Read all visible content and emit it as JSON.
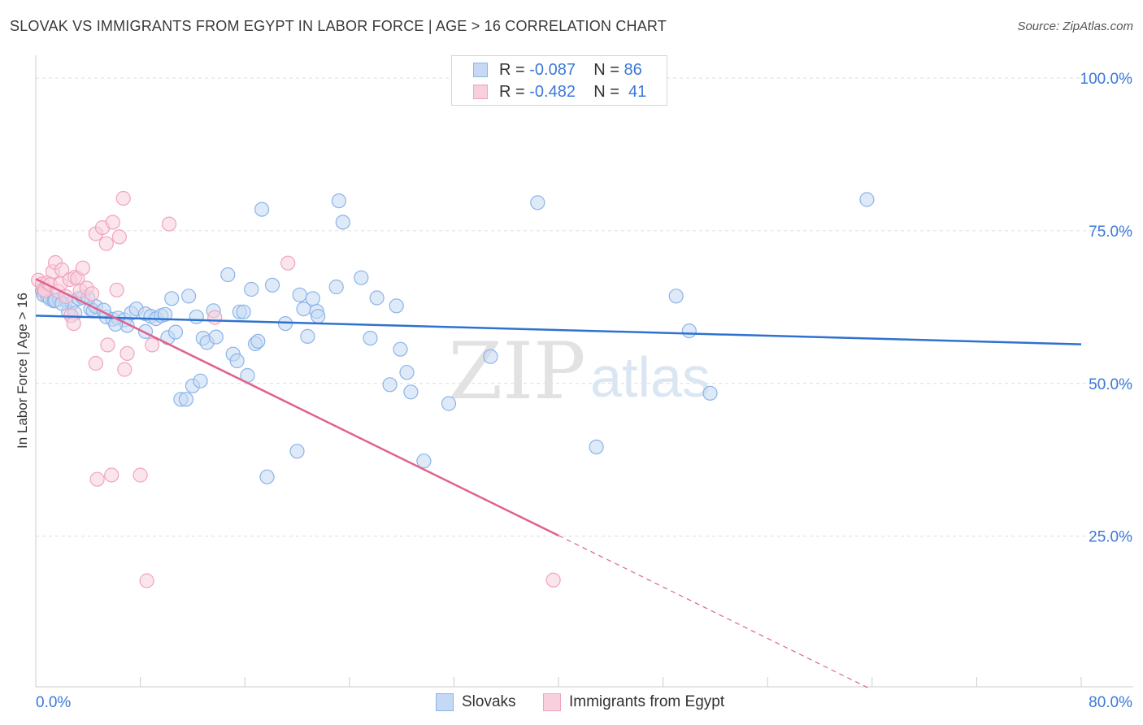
{
  "chart_data": {
    "type": "scatter",
    "title": "SLOVAK VS IMMIGRANTS FROM EGYPT IN LABOR FORCE | AGE > 16 CORRELATION CHART",
    "source": "Source: ZipAtlas.com",
    "ylabel": "In Labor Force | Age > 16",
    "xlim": [
      0,
      80
    ],
    "ylim": [
      0,
      100
    ],
    "x_tick_labels": {
      "min": "0.0%",
      "max": "80.0%"
    },
    "y_tick_labels": [
      {
        "value": 100,
        "label": "100.0%"
      },
      {
        "value": 75,
        "label": "75.0%"
      },
      {
        "value": 50,
        "label": "50.0%"
      },
      {
        "value": 25,
        "label": "25.0%"
      }
    ],
    "watermark": {
      "zip": "ZIP",
      "atlas": "atlas"
    },
    "stats": [
      {
        "r_label": "R =",
        "r_value": "-0.087",
        "n_label": "N =",
        "n_value": "86"
      },
      {
        "r_label": "R =",
        "r_value": "-0.482",
        "n_label": "N =",
        "n_value": "41"
      }
    ],
    "series": [
      {
        "name": "Slovaks",
        "color": "#8ab4e8",
        "fill": "#c5d9f4",
        "line_color": "#2e72cf",
        "trend": {
          "x0": 0,
          "y0": 61.1,
          "x1": 80,
          "y1": 56.4
        },
        "points": [
          [
            0.5,
            65.2
          ],
          [
            0.6,
            64.5
          ],
          [
            0.9,
            64.2
          ],
          [
            1.1,
            63.8
          ],
          [
            1.4,
            63.5
          ],
          [
            1.8,
            63.8
          ],
          [
            2.3,
            63.6
          ],
          [
            2.5,
            61.7
          ],
          [
            2.8,
            63.2
          ],
          [
            3.3,
            63.9
          ],
          [
            3.6,
            64.1
          ],
          [
            4.2,
            62.2
          ],
          [
            4.4,
            61.9
          ],
          [
            4.6,
            62.6
          ],
          [
            5.4,
            60.9
          ],
          [
            5.9,
            60.5
          ],
          [
            6.3,
            60.7
          ],
          [
            6.8,
            60.4
          ],
          [
            7.3,
            61.5
          ],
          [
            7.7,
            62.2
          ],
          [
            8.4,
            61.4
          ],
          [
            8.8,
            61.0
          ],
          [
            9.2,
            60.6
          ],
          [
            9.6,
            61.1
          ],
          [
            10.1,
            57.5
          ],
          [
            10.4,
            63.9
          ],
          [
            10.7,
            58.4
          ],
          [
            11.1,
            47.4
          ],
          [
            11.5,
            47.4
          ],
          [
            11.7,
            64.3
          ],
          [
            12.0,
            49.6
          ],
          [
            12.3,
            60.9
          ],
          [
            12.6,
            50.4
          ],
          [
            12.8,
            57.4
          ],
          [
            13.1,
            56.7
          ],
          [
            13.6,
            61.9
          ],
          [
            13.8,
            57.6
          ],
          [
            14.7,
            67.8
          ],
          [
            15.1,
            54.8
          ],
          [
            15.4,
            53.7
          ],
          [
            15.6,
            61.7
          ],
          [
            15.9,
            61.7
          ],
          [
            16.2,
            51.3
          ],
          [
            16.5,
            65.4
          ],
          [
            16.8,
            56.5
          ],
          [
            17.0,
            56.9
          ],
          [
            17.3,
            78.5
          ],
          [
            17.7,
            34.7
          ],
          [
            18.1,
            66.1
          ],
          [
            19.1,
            59.8
          ],
          [
            20.0,
            38.9
          ],
          [
            20.2,
            64.5
          ],
          [
            20.5,
            62.2
          ],
          [
            20.8,
            57.7
          ],
          [
            21.2,
            63.9
          ],
          [
            21.5,
            61.8
          ],
          [
            21.6,
            61.0
          ],
          [
            23.0,
            65.8
          ],
          [
            23.2,
            79.9
          ],
          [
            23.5,
            76.4
          ],
          [
            24.9,
            67.3
          ],
          [
            25.6,
            57.4
          ],
          [
            26.1,
            64.0
          ],
          [
            27.1,
            49.8
          ],
          [
            27.6,
            62.7
          ],
          [
            27.9,
            55.6
          ],
          [
            28.4,
            51.8
          ],
          [
            28.7,
            48.6
          ],
          [
            29.7,
            37.3
          ],
          [
            31.6,
            46.7
          ],
          [
            34.8,
            54.4
          ],
          [
            38.4,
            79.6
          ],
          [
            42.9,
            39.6
          ],
          [
            49.0,
            64.3
          ],
          [
            50.0,
            58.6
          ],
          [
            51.6,
            48.4
          ],
          [
            63.6,
            80.1
          ],
          [
            4.0,
            64.0
          ],
          [
            7.0,
            59.5
          ],
          [
            5.2,
            62.0
          ],
          [
            9.9,
            61.3
          ],
          [
            8.4,
            58.5
          ],
          [
            6.1,
            59.7
          ],
          [
            1.5,
            63.6
          ],
          [
            2.0,
            63.1
          ],
          [
            3.0,
            61.5
          ]
        ]
      },
      {
        "name": "Immigrants from Egypt",
        "color": "#f1a3bd",
        "fill": "#f8d0dd",
        "line_color": "#e0628c",
        "trend": {
          "x0": 0,
          "y0": 67.1,
          "x1": 40,
          "y1": 25.1,
          "dash_x1": 80,
          "dash_y1": -17.0
        },
        "points": [
          [
            0.2,
            66.9
          ],
          [
            0.5,
            66.3
          ],
          [
            0.6,
            65.4
          ],
          [
            0.7,
            65.2
          ],
          [
            0.9,
            66.5
          ],
          [
            1.1,
            66.2
          ],
          [
            1.3,
            68.3
          ],
          [
            1.5,
            69.8
          ],
          [
            1.7,
            65.1
          ],
          [
            1.9,
            66.3
          ],
          [
            2.0,
            68.6
          ],
          [
            2.3,
            64.2
          ],
          [
            2.6,
            67.0
          ],
          [
            2.7,
            61.1
          ],
          [
            2.9,
            59.8
          ],
          [
            3.0,
            67.4
          ],
          [
            3.2,
            67.2
          ],
          [
            3.4,
            65.2
          ],
          [
            3.6,
            68.9
          ],
          [
            3.9,
            65.6
          ],
          [
            4.3,
            64.7
          ],
          [
            4.6,
            74.5
          ],
          [
            4.6,
            53.3
          ],
          [
            4.7,
            34.3
          ],
          [
            5.1,
            75.5
          ],
          [
            5.4,
            72.9
          ],
          [
            5.5,
            56.3
          ],
          [
            5.8,
            35.0
          ],
          [
            5.9,
            76.4
          ],
          [
            6.2,
            65.3
          ],
          [
            6.4,
            74.0
          ],
          [
            6.7,
            80.3
          ],
          [
            6.8,
            52.3
          ],
          [
            7.0,
            54.9
          ],
          [
            8.0,
            35.0
          ],
          [
            8.5,
            17.7
          ],
          [
            8.9,
            56.3
          ],
          [
            10.2,
            76.1
          ],
          [
            13.7,
            60.8
          ],
          [
            19.3,
            69.7
          ],
          [
            39.6,
            17.8
          ]
        ]
      }
    ]
  }
}
